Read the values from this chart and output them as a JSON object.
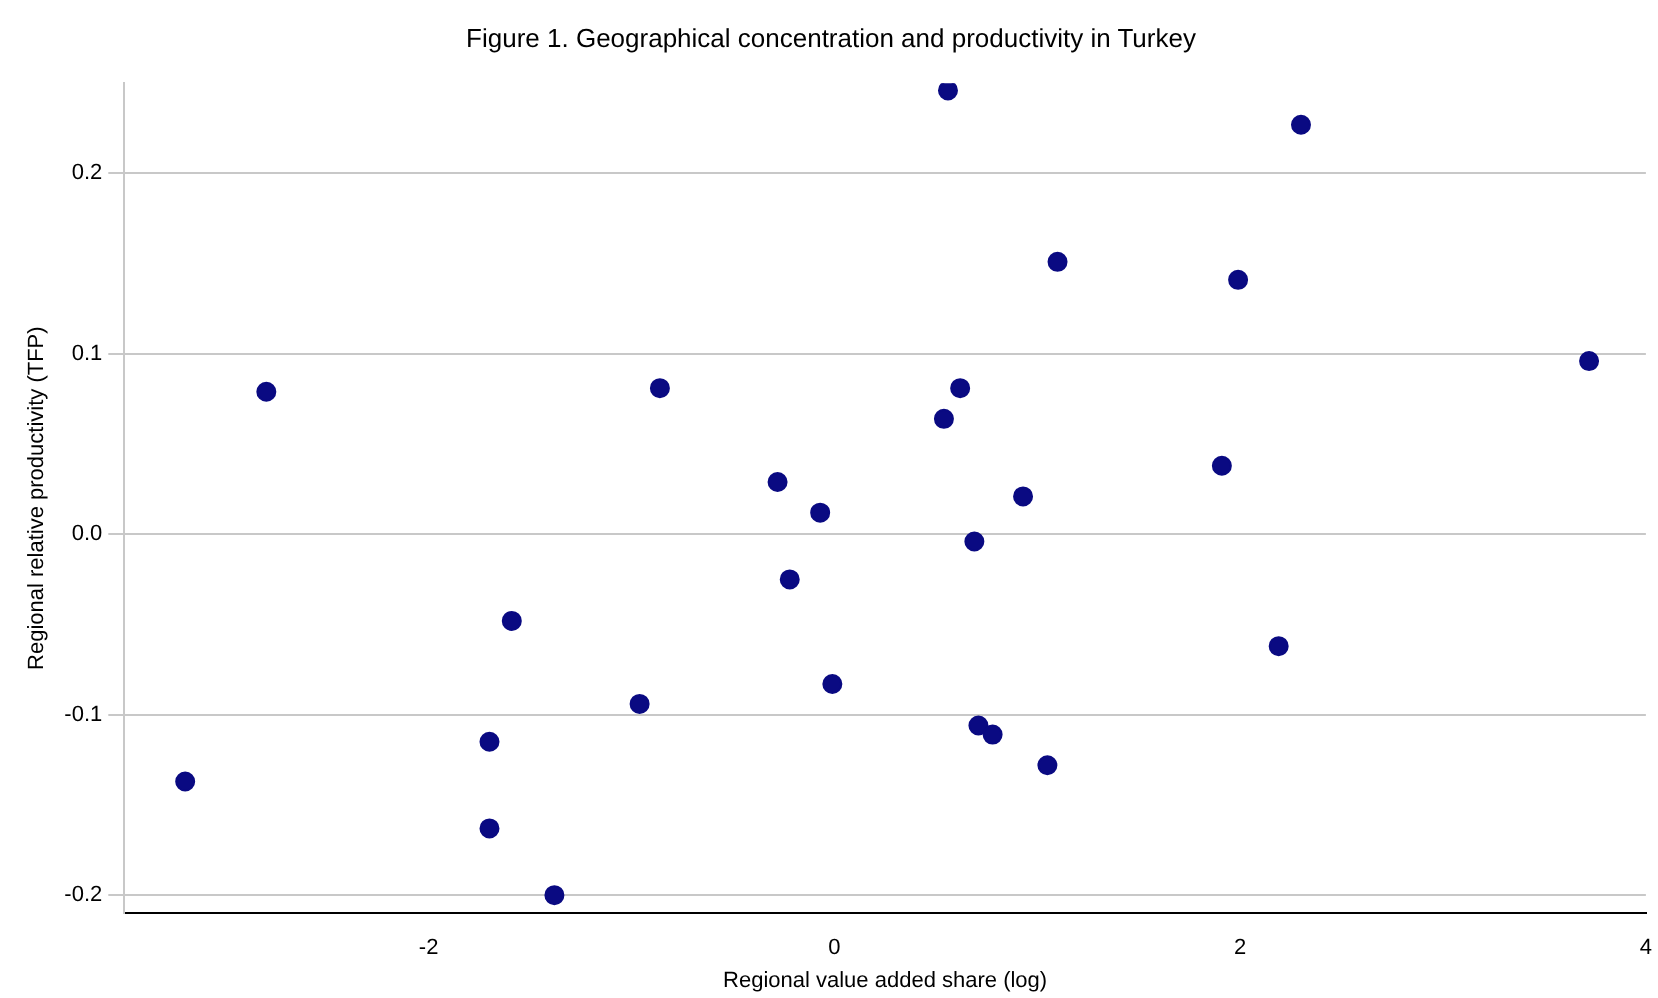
{
  "chart_data": {
    "type": "scatter",
    "title": "Figure 1. Geographical concentration and productivity in Turkey",
    "xlabel": "Regional value added share (log)",
    "ylabel": "Regional relative productivity (TFP)",
    "x": [
      -3.2,
      -2.8,
      -1.7,
      -1.7,
      -1.59,
      -1.38,
      -0.96,
      -0.86,
      -0.28,
      -0.22,
      -0.07,
      -0.01,
      0.56,
      0.54,
      0.62,
      0.69,
      0.71,
      0.78,
      0.93,
      1.05,
      1.1,
      1.91,
      1.99,
      2.19,
      2.3,
      3.72
    ],
    "series": [
      {
        "color": "#0a0a82",
        "values": [
          -0.137,
          0.079,
          -0.115,
          -0.163,
          -0.048,
          -0.2,
          -0.094,
          0.081,
          0.029,
          -0.025,
          0.012,
          -0.083,
          0.246,
          0.064,
          0.081,
          -0.004,
          -0.106,
          -0.111,
          0.021,
          -0.128,
          0.151,
          0.038,
          0.141,
          -0.062,
          0.227,
          0.096
        ]
      }
    ],
    "xlim": [
      -3.5,
      4
    ],
    "ylim": [
      -0.21,
      0.25
    ],
    "xticks": [
      -2,
      0,
      2,
      4
    ],
    "yticks": [
      {
        "value": -0.2,
        "label": "-0.2"
      },
      {
        "value": -0.1,
        "label": "-0.1"
      },
      {
        "value": 0,
        "label": "0.0"
      },
      {
        "value": 0.1,
        "label": "0.1"
      },
      {
        "value": 0.2,
        "label": "0.2"
      }
    ],
    "grid": "y",
    "marker": "circle",
    "legend": false
  }
}
